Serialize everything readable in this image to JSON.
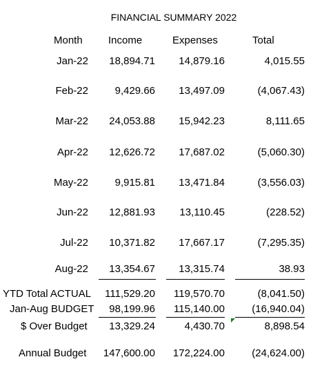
{
  "title": "FINANCIAL SUMMARY 2022",
  "headers": {
    "month": "Month",
    "income": "Income",
    "expenses": "Expenses",
    "total": "Total"
  },
  "rows": [
    {
      "label": "Jan-22",
      "income": "18,894.71",
      "expenses": "14,879.16",
      "total": "4,015.55"
    },
    {
      "label": "Feb-22",
      "income": "9,429.66",
      "expenses": "13,497.09",
      "total": "(4,067.43)"
    },
    {
      "label": "Mar-22",
      "income": "24,053.88",
      "expenses": "15,942.23",
      "total": "8,111.65"
    },
    {
      "label": "Apr-22",
      "income": "12,626.72",
      "expenses": "17,687.02",
      "total": "(5,060.30)"
    },
    {
      "label": "May-22",
      "income": "9,915.81",
      "expenses": "13,471.84",
      "total": "(3,556.03)"
    },
    {
      "label": "Jun-22",
      "income": "12,881.93",
      "expenses": "13,110.45",
      "total": "(228.52)"
    },
    {
      "label": "Jul-22",
      "income": "10,371.82",
      "expenses": "17,667.17",
      "total": "(7,295.35)"
    },
    {
      "label": "Aug-22",
      "income": "13,354.67",
      "expenses": "13,315.74",
      "total": "38.93"
    }
  ],
  "summary": [
    {
      "label": "YTD Total ACTUAL",
      "income": "111,529.20",
      "expenses": "119,570.70",
      "total": "(8,041.50)"
    },
    {
      "label": "Jan-Aug BUDGET",
      "income": "98,199.96",
      "expenses": "115,140.00",
      "total": "(16,940.04)"
    },
    {
      "label": "$ Over Budget",
      "income": "13,329.24",
      "expenses": "4,430.70",
      "total": "8,898.54"
    },
    {
      "label": "Annual Budget",
      "income": "147,600.00",
      "expenses": "172,224.00",
      "total": "(24,624.00)"
    }
  ],
  "colors": {
    "text": "#000000",
    "comment_marker": "#1f7a1f"
  }
}
